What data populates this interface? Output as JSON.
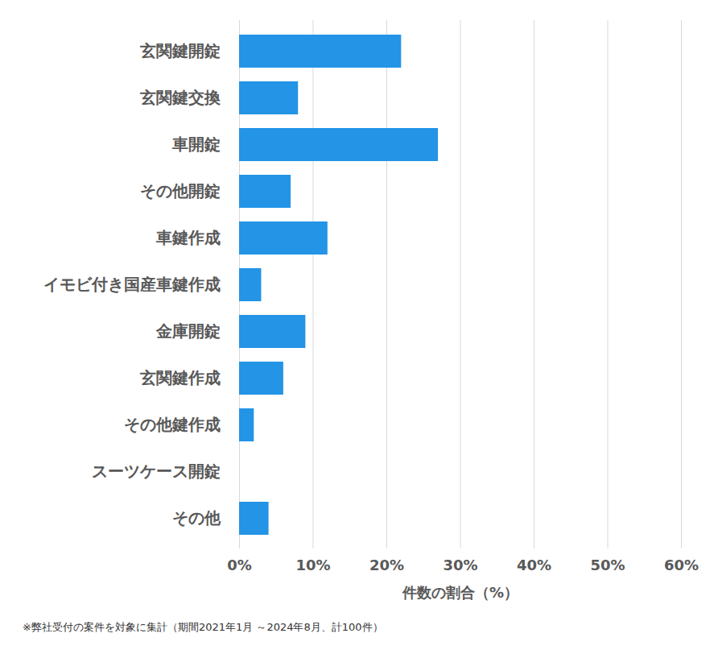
{
  "chart_data": {
    "type": "bar",
    "orientation": "horizontal",
    "categories": [
      "玄関鍵開錠",
      "玄関鍵交換",
      "車開錠",
      "その他開錠",
      "車鍵作成",
      "イモビ付き国産車鍵作成",
      "金庫開錠",
      "玄関鍵作成",
      "その他鍵作成",
      "スーツケース開錠",
      "その他"
    ],
    "values": [
      22,
      8,
      27,
      7,
      12,
      3,
      9,
      6,
      2,
      0,
      4
    ],
    "color": "#2394e6",
    "xlabel": "件数の割合（%）",
    "xlim": [
      0,
      60
    ],
    "xticks": [
      {
        "value": 0,
        "label": "0%"
      },
      {
        "value": 10,
        "label": "10%"
      },
      {
        "value": 20,
        "label": "20%"
      },
      {
        "value": 30,
        "label": "30%"
      },
      {
        "value": 40,
        "label": "40%"
      },
      {
        "value": 50,
        "label": "50%"
      },
      {
        "value": 60,
        "label": "60%"
      }
    ],
    "grid": true,
    "caption": "※弊社受付の案件を対象に集計（期間2021年1月 ～2024年8月、計100件）"
  }
}
